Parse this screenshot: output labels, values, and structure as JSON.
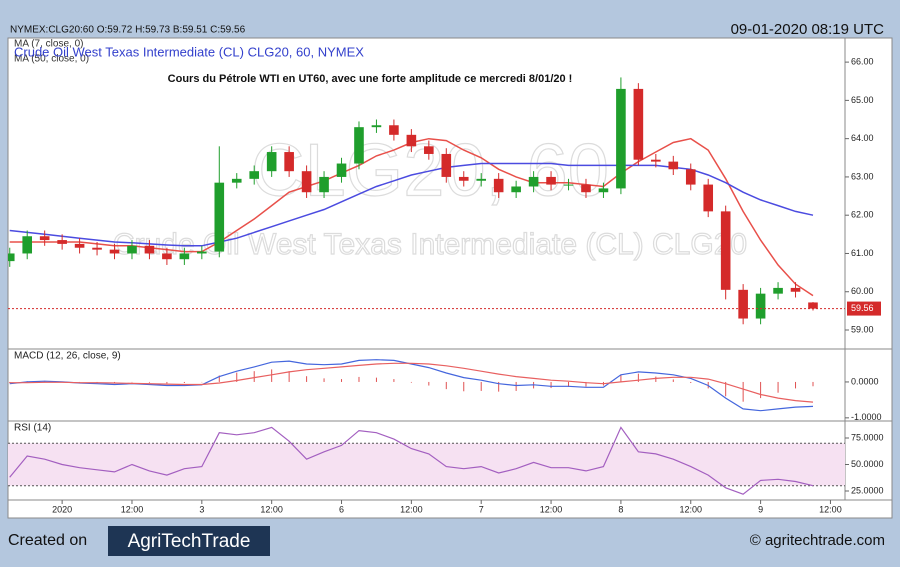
{
  "header": {
    "quote": "NYMEX:CLG20:60 O:59.72 H:59.73 B:59.51 C:59.56",
    "datetime": "09-01-2020 08:19 UTC"
  },
  "footer": {
    "created_on": "Created on",
    "logo": "AgriTechTrade",
    "copyright": "© agritechtrade.com"
  },
  "chart_data": [
    {
      "type": "candlestick",
      "title": "Crude Oil West Texas Intermediate (CL) CLG20, 60, NYMEX",
      "annotation": "Cours du Pétrole WTI en UT60, avec une forte amplitude ce mercredi 8/01/20 !",
      "watermark": [
        "CLG20, 60",
        "Crude Oil West Texas Intermediate (CL) CLG20"
      ],
      "x": [
        0,
        3,
        6,
        9,
        12,
        15,
        18,
        21,
        24,
        27,
        30,
        33,
        36,
        39,
        42,
        45,
        48,
        51,
        54,
        57,
        60,
        63,
        66,
        69,
        72,
        75,
        78,
        81,
        84,
        87,
        90,
        93,
        96,
        99,
        102,
        105,
        108,
        111,
        114,
        117,
        120,
        123,
        126,
        129,
        132,
        135,
        138
      ],
      "open": [
        60.8,
        61.0,
        61.45,
        61.35,
        61.25,
        61.15,
        61.1,
        61.0,
        61.2,
        61.0,
        60.85,
        61.0,
        61.05,
        62.85,
        62.95,
        63.15,
        63.65,
        63.15,
        62.6,
        63.0,
        63.35,
        64.3,
        64.35,
        64.1,
        63.8,
        63.6,
        63.0,
        62.9,
        62.95,
        62.6,
        62.75,
        63.0,
        62.8,
        62.8,
        62.6,
        62.7,
        65.3,
        63.45,
        63.4,
        63.2,
        62.8,
        62.1,
        60.05,
        59.3,
        59.95,
        60.1,
        59.72
      ],
      "high": [
        61.15,
        61.6,
        61.6,
        61.5,
        61.4,
        61.3,
        61.25,
        61.35,
        61.35,
        61.15,
        61.15,
        61.2,
        63.8,
        63.1,
        63.3,
        63.8,
        63.8,
        63.3,
        63.15,
        63.5,
        64.45,
        64.5,
        64.5,
        64.25,
        63.95,
        63.75,
        63.15,
        63.1,
        63.1,
        62.9,
        63.15,
        63.15,
        62.95,
        62.95,
        62.85,
        65.6,
        65.45,
        63.6,
        63.55,
        63.35,
        62.95,
        62.25,
        60.2,
        60.1,
        60.25,
        60.25,
        59.73
      ],
      "low": [
        60.65,
        60.85,
        61.2,
        61.1,
        61.0,
        60.95,
        60.85,
        60.85,
        60.85,
        60.7,
        60.7,
        60.85,
        60.9,
        62.7,
        62.8,
        63.0,
        63.0,
        62.45,
        62.45,
        62.85,
        63.2,
        64.15,
        63.95,
        63.65,
        63.45,
        62.85,
        62.75,
        62.75,
        62.45,
        62.45,
        62.6,
        62.65,
        62.65,
        62.45,
        62.45,
        62.55,
        63.3,
        63.25,
        63.05,
        62.65,
        61.95,
        59.8,
        59.15,
        59.15,
        59.8,
        59.85,
        59.51
      ],
      "close": [
        61.0,
        61.45,
        61.35,
        61.25,
        61.15,
        61.1,
        61.0,
        61.2,
        61.0,
        60.85,
        61.0,
        61.05,
        62.85,
        62.95,
        63.15,
        63.65,
        63.15,
        62.6,
        63.0,
        63.35,
        64.3,
        64.35,
        64.1,
        63.8,
        63.6,
        63.0,
        62.9,
        62.95,
        62.6,
        62.75,
        63.0,
        62.8,
        62.8,
        62.6,
        62.7,
        65.3,
        63.45,
        63.4,
        63.2,
        62.8,
        62.1,
        60.05,
        59.3,
        59.95,
        60.1,
        60.0,
        59.56
      ],
      "up_color": "#1f9e2c",
      "down_color": "#d42a2a",
      "series": [
        {
          "name": "MA (7, close, 0)",
          "color": "#e8504a",
          "values": [
            61.3,
            61.3,
            61.3,
            61.3,
            61.3,
            61.25,
            61.2,
            61.2,
            61.15,
            61.1,
            61.05,
            61.05,
            61.3,
            61.6,
            61.9,
            62.25,
            62.6,
            62.75,
            62.9,
            63.1,
            63.3,
            63.55,
            63.7,
            63.9,
            64.0,
            63.95,
            63.7,
            63.5,
            63.2,
            63.0,
            62.85,
            62.85,
            62.85,
            62.8,
            62.75,
            63.1,
            63.4,
            63.65,
            63.9,
            64.0,
            63.7,
            62.95,
            62.1,
            61.35,
            60.7,
            60.2,
            59.9
          ]
        },
        {
          "name": "MA (50, close, 0)",
          "color": "#4b4be0",
          "values": [
            61.6,
            61.55,
            61.5,
            61.45,
            61.4,
            61.35,
            61.3,
            61.28,
            61.25,
            61.22,
            61.2,
            61.2,
            61.3,
            61.4,
            61.55,
            61.7,
            61.85,
            62.0,
            62.15,
            62.35,
            62.55,
            62.75,
            62.9,
            63.05,
            63.15,
            63.25,
            63.3,
            63.35,
            63.35,
            63.35,
            63.35,
            63.35,
            63.3,
            63.3,
            63.3,
            63.3,
            63.3,
            63.3,
            63.25,
            63.2,
            63.05,
            62.85,
            62.6,
            62.4,
            62.25,
            62.1,
            62.0
          ]
        }
      ],
      "last_price": 59.56,
      "last_price_color": "#d42a2a",
      "xlim": [
        -0.3,
        143.5
      ],
      "ylim": [
        58.53,
        66.63
      ],
      "yticks": [
        {
          "value": 59,
          "label": "59.00"
        },
        {
          "value": 60,
          "label": "60.00"
        },
        {
          "value": 61,
          "label": "61.00"
        },
        {
          "value": 62,
          "label": "62.00"
        },
        {
          "value": 63,
          "label": "63.00"
        },
        {
          "value": 64,
          "label": "64.00"
        },
        {
          "value": 65,
          "label": "65.00"
        },
        {
          "value": 66,
          "label": "66.00"
        }
      ]
    },
    {
      "type": "macd",
      "title": "MACD (12, 26, close, 9)",
      "x": [
        0,
        3,
        6,
        9,
        12,
        15,
        18,
        21,
        24,
        27,
        30,
        33,
        36,
        39,
        42,
        45,
        48,
        51,
        54,
        57,
        60,
        63,
        66,
        69,
        72,
        75,
        78,
        81,
        84,
        87,
        90,
        93,
        96,
        99,
        102,
        105,
        108,
        111,
        114,
        117,
        120,
        123,
        126,
        129,
        132,
        135,
        138
      ],
      "series": [
        {
          "color": "#4466dd",
          "values": [
            -0.05,
            0.0,
            0.02,
            0.0,
            -0.03,
            -0.05,
            -0.07,
            -0.05,
            -0.07,
            -0.1,
            -0.1,
            -0.08,
            0.15,
            0.3,
            0.42,
            0.55,
            0.58,
            0.5,
            0.48,
            0.5,
            0.6,
            0.62,
            0.6,
            0.5,
            0.4,
            0.25,
            0.12,
            0.05,
            -0.05,
            -0.1,
            -0.08,
            -0.12,
            -0.12,
            -0.15,
            -0.15,
            0.2,
            0.28,
            0.25,
            0.2,
            0.1,
            -0.1,
            -0.45,
            -0.75,
            -0.8,
            -0.75,
            -0.7,
            -0.68
          ]
        },
        {
          "color": "#e86060",
          "values": [
            -0.02,
            -0.02,
            -0.01,
            -0.01,
            -0.02,
            -0.02,
            -0.03,
            -0.04,
            -0.05,
            -0.06,
            -0.07,
            -0.07,
            -0.03,
            0.04,
            0.12,
            0.2,
            0.28,
            0.34,
            0.38,
            0.42,
            0.46,
            0.5,
            0.52,
            0.52,
            0.5,
            0.45,
            0.38,
            0.3,
            0.22,
            0.15,
            0.1,
            0.05,
            0.02,
            -0.02,
            -0.05,
            0.0,
            0.05,
            0.1,
            0.13,
            0.13,
            0.08,
            -0.05,
            -0.2,
            -0.35,
            -0.45,
            -0.52,
            -0.56
          ]
        }
      ],
      "histogram": [
        -0.03,
        0.02,
        0.03,
        0.01,
        -0.01,
        -0.03,
        -0.04,
        -0.01,
        -0.02,
        -0.04,
        -0.03,
        -0.01,
        0.18,
        0.26,
        0.3,
        0.35,
        0.3,
        0.16,
        0.1,
        0.08,
        0.14,
        0.12,
        0.08,
        -0.02,
        -0.1,
        -0.2,
        -0.26,
        -0.25,
        -0.27,
        -0.25,
        -0.18,
        -0.17,
        -0.14,
        -0.13,
        -0.1,
        0.2,
        0.23,
        0.15,
        0.07,
        -0.03,
        -0.18,
        -0.4,
        -0.55,
        -0.45,
        -0.3,
        -0.18,
        -0.12
      ],
      "histogram_color": "#e05050",
      "xlim": [
        -0.3,
        143.5
      ],
      "ylim": [
        -1.06,
        0.89
      ],
      "yticks": [
        {
          "value": 0,
          "label": "0.0000"
        },
        {
          "value": -1,
          "label": "-1.0000"
        }
      ]
    },
    {
      "type": "line",
      "title": "RSI (14)",
      "x": [
        0,
        3,
        6,
        9,
        12,
        15,
        18,
        21,
        24,
        27,
        30,
        33,
        36,
        39,
        42,
        45,
        48,
        51,
        54,
        57,
        60,
        63,
        66,
        69,
        72,
        75,
        78,
        81,
        84,
        87,
        90,
        93,
        96,
        99,
        102,
        105,
        108,
        111,
        114,
        117,
        120,
        123,
        126,
        129,
        132,
        135,
        138
      ],
      "series": [
        {
          "color": "#a35fc0",
          "values": [
            38,
            58,
            55,
            50,
            47,
            45,
            43,
            50,
            44,
            40,
            46,
            48,
            80,
            78,
            80,
            85,
            72,
            55,
            62,
            68,
            82,
            80,
            74,
            65,
            60,
            48,
            46,
            48,
            42,
            46,
            52,
            47,
            47,
            44,
            48,
            85,
            62,
            60,
            55,
            48,
            40,
            28,
            22,
            35,
            36,
            34,
            30
          ]
        }
      ],
      "band": [
        30,
        70
      ],
      "band_color": "#f6e1f2",
      "xlim": [
        -0.3,
        143.5
      ],
      "ylim": [
        16.5,
        90.1
      ],
      "yticks": [
        {
          "value": 25,
          "label": "25.0000"
        },
        {
          "value": 50,
          "label": "50.0000"
        },
        {
          "value": 75,
          "label": "75.0000"
        }
      ],
      "xticks": [
        {
          "value": 9,
          "label": "2020"
        },
        {
          "value": 21,
          "label": "12:00"
        },
        {
          "value": 33,
          "label": "3"
        },
        {
          "value": 45,
          "label": "12:00"
        },
        {
          "value": 57,
          "label": "6"
        },
        {
          "value": 69,
          "label": "12:00"
        },
        {
          "value": 81,
          "label": "7"
        },
        {
          "value": 93,
          "label": "12:00"
        },
        {
          "value": 105,
          "label": "8"
        },
        {
          "value": 117,
          "label": "12:00"
        },
        {
          "value": 129,
          "label": "9"
        },
        {
          "value": 141,
          "label": "12:00"
        }
      ]
    }
  ]
}
